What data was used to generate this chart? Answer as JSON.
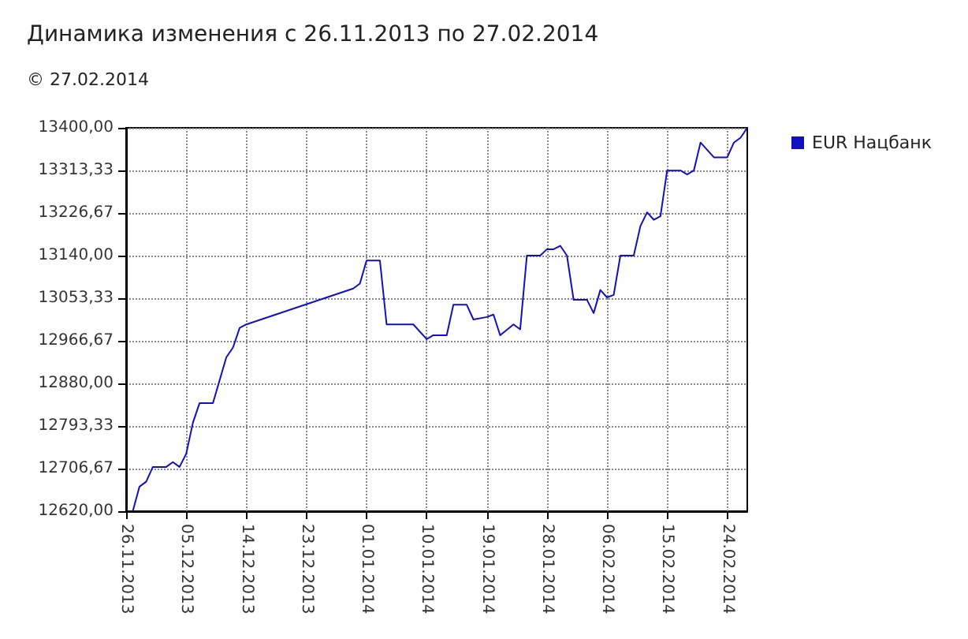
{
  "chart_data": {
    "type": "line",
    "title": "Динамика изменения с 26.11.2013 по 27.02.2014",
    "subtitle": "© 27.02.2014",
    "x": [
      "2013-11-27",
      "2013-11-28",
      "2013-11-29",
      "2013-11-30",
      "2013-12-02",
      "2013-12-03",
      "2013-12-04",
      "2013-12-05",
      "2013-12-06",
      "2013-12-07",
      "2013-12-09",
      "2013-12-11",
      "2013-12-12",
      "2013-12-13",
      "2013-12-14",
      "2013-12-30",
      "2013-12-31",
      "2014-01-01",
      "2014-01-03",
      "2014-01-04",
      "2014-01-08",
      "2014-01-10",
      "2014-01-11",
      "2014-01-13",
      "2014-01-14",
      "2014-01-16",
      "2014-01-17",
      "2014-01-19",
      "2014-01-20",
      "2014-01-21",
      "2014-01-23",
      "2014-01-24",
      "2014-01-25",
      "2014-01-27",
      "2014-01-28",
      "2014-01-29",
      "2014-01-30",
      "2014-01-31",
      "2014-02-01",
      "2014-02-03",
      "2014-02-04",
      "2014-02-05",
      "2014-02-06",
      "2014-02-07",
      "2014-02-08",
      "2014-02-10",
      "2014-02-11",
      "2014-02-12",
      "2014-02-13",
      "2014-02-14",
      "2014-02-15",
      "2014-02-17",
      "2014-02-18",
      "2014-02-19",
      "2014-02-20",
      "2014-02-22",
      "2014-02-24",
      "2014-02-25",
      "2014-02-26",
      "2014-02-27"
    ],
    "series": [
      {
        "name": "EUR Нацбанк",
        "color": "#1010c0",
        "values": [
          12620,
          12670,
          12680,
          12710,
          12710,
          12720,
          12710,
          12737,
          12800,
          12840,
          12840,
          12933,
          12953,
          12993,
          13000,
          13073,
          13083,
          13130,
          13130,
          13000,
          13000,
          12970,
          12978,
          12978,
          13040,
          13040,
          13010,
          13015,
          13020,
          12978,
          13000,
          12990,
          13140,
          13140,
          13153,
          13153,
          13160,
          13140,
          13050,
          13050,
          13023,
          13070,
          13055,
          13060,
          13140,
          13140,
          13200,
          13228,
          13213,
          13220,
          13313,
          13313,
          13305,
          13313,
          13370,
          13340,
          13340,
          13370,
          13380,
          13400
        ]
      }
    ],
    "xlim": [
      "2013-11-26",
      "2014-02-27"
    ],
    "xticks": [
      {
        "value": "2013-11-26",
        "label": "26.11.2013"
      },
      {
        "value": "2013-12-05",
        "label": "05.12.2013"
      },
      {
        "value": "2013-12-14",
        "label": "14.12.2013"
      },
      {
        "value": "2013-12-23",
        "label": "23.12.2013"
      },
      {
        "value": "2014-01-01",
        "label": "01.01.2014"
      },
      {
        "value": "2014-01-10",
        "label": "10.01.2014"
      },
      {
        "value": "2014-01-19",
        "label": "19.01.2014"
      },
      {
        "value": "2014-01-28",
        "label": "28.01.2014"
      },
      {
        "value": "2014-02-06",
        "label": "06.02.2014"
      },
      {
        "value": "2014-02-15",
        "label": "15.02.2014"
      },
      {
        "value": "2014-02-24",
        "label": "24.02.2014"
      }
    ],
    "ylim": [
      12620,
      13400
    ],
    "yticks": [
      {
        "value": 12620,
        "label": "12620,00"
      },
      {
        "value": 12706.67,
        "label": "12706,67"
      },
      {
        "value": 12793.33,
        "label": "12793,33"
      },
      {
        "value": 12880,
        "label": "12880,00"
      },
      {
        "value": 12966.67,
        "label": "12966,67"
      },
      {
        "value": 13053.33,
        "label": "13053,33"
      },
      {
        "value": 13140,
        "label": "13140,00"
      },
      {
        "value": 13226.67,
        "label": "13226,67"
      },
      {
        "value": 13313.33,
        "label": "13313,33"
      },
      {
        "value": 13400,
        "label": "13400,00"
      }
    ],
    "grid": true,
    "legend": "top right",
    "marker": "none",
    "line_style": "solid"
  }
}
